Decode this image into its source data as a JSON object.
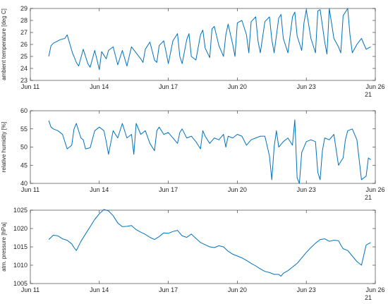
{
  "colors": {
    "series": "#0072BD",
    "axis": "#262626"
  },
  "x_ticks": [
    "Jun 11",
    "Jun 14",
    "Jun 17",
    "Jun 20",
    "Jun 23",
    "Jun 26"
  ],
  "x_ticks_num": [
    11,
    14,
    17,
    20,
    23,
    26
  ],
  "year_label": "21",
  "chart_data": [
    {
      "type": "line",
      "ylabel": "ambient temperature [deg C]",
      "xlim": [
        11,
        26
      ],
      "ylim": [
        23,
        29
      ],
      "y_ticks": [
        "23",
        "24",
        "25",
        "26",
        "27",
        "28",
        "29"
      ],
      "y_ticks_num": [
        23,
        24,
        25,
        26,
        27,
        28,
        29
      ],
      "grid": false,
      "series": [
        {
          "x": [
            11.8,
            11.9,
            12.0,
            12.2,
            12.3,
            12.5,
            12.6,
            12.8,
            12.85,
            12.9,
            13.0,
            13.1,
            13.3,
            13.5,
            13.6,
            13.8,
            14.0,
            14.1,
            14.2,
            14.3,
            14.4,
            14.6,
            14.8,
            15.0,
            15.2,
            15.4,
            15.6,
            15.8,
            15.9,
            16.0,
            16.2,
            16.4,
            16.5,
            16.6,
            16.8,
            16.9,
            17.0,
            17.2,
            17.4,
            17.5,
            17.6,
            17.8,
            17.9,
            18.0,
            18.2,
            18.4,
            18.5,
            18.6,
            18.8,
            18.9,
            19.0,
            19.2,
            19.4,
            19.5,
            19.6,
            19.8,
            19.9,
            20.0,
            20.2,
            20.4,
            20.5,
            20.6,
            20.8,
            20.9,
            21.0,
            21.2,
            21.4,
            21.5,
            21.6,
            21.8,
            21.9,
            22.0,
            22.2,
            22.4,
            22.5,
            22.6,
            22.8,
            22.9,
            23.0,
            23.2,
            23.4,
            23.5,
            23.6,
            23.8,
            23.9,
            24.0,
            24.2,
            24.4,
            24.5,
            24.6,
            24.8,
            24.9,
            25.0,
            25.2,
            25.4,
            25.6,
            25.8
          ],
          "y": [
            25.0,
            25.9,
            26.1,
            26.3,
            26.4,
            26.5,
            26.8,
            25.5,
            25.2,
            25.0,
            24.5,
            24.2,
            25.6,
            24.4,
            24.1,
            25.5,
            23.9,
            25.4,
            25.1,
            24.8,
            25.5,
            25.8,
            24.3,
            25.5,
            24.2,
            25.8,
            25.3,
            24.8,
            24.5,
            25.6,
            26.2,
            24.7,
            24.5,
            25.9,
            26.3,
            25.4,
            24.4,
            26.3,
            26.9,
            25.0,
            24.4,
            26.4,
            26.9,
            25.0,
            24.7,
            26.8,
            27.2,
            25.7,
            24.9,
            27.3,
            27.5,
            25.9,
            25.0,
            26.8,
            27.7,
            26.0,
            25.0,
            27.8,
            28.0,
            26.8,
            25.3,
            27.9,
            28.3,
            26.3,
            25.3,
            27.9,
            28.3,
            26.4,
            25.3,
            28.2,
            28.5,
            26.5,
            25.3,
            28.3,
            28.7,
            26.7,
            25.5,
            27.8,
            28.9,
            26.5,
            25.3,
            28.8,
            28.9,
            26.2,
            25.2,
            29.0,
            26.5,
            25.8,
            25.3,
            28.4,
            29.0,
            26.8,
            25.3,
            26.0,
            26.5,
            25.6,
            25.8
          ]
        }
      ]
    },
    {
      "type": "line",
      "ylabel": "relative humidity [%]",
      "xlim": [
        11,
        26
      ],
      "ylim": [
        40,
        60
      ],
      "y_ticks": [
        "40",
        "45",
        "50",
        "55",
        "60"
      ],
      "y_ticks_num": [
        40,
        45,
        50,
        55,
        60
      ],
      "grid": false,
      "series": [
        {
          "x": [
            11.8,
            11.9,
            12.0,
            12.2,
            12.4,
            12.6,
            12.8,
            12.9,
            13.0,
            13.2,
            13.3,
            13.4,
            13.6,
            13.8,
            14.0,
            14.2,
            14.3,
            14.4,
            14.6,
            14.8,
            15.0,
            15.2,
            15.4,
            15.5,
            15.6,
            15.8,
            16.0,
            16.2,
            16.4,
            16.5,
            16.6,
            16.8,
            17.0,
            17.2,
            17.4,
            17.5,
            17.6,
            17.8,
            18.0,
            18.2,
            18.4,
            18.5,
            18.6,
            18.8,
            19.0,
            19.2,
            19.4,
            19.5,
            19.6,
            19.8,
            20.0,
            20.2,
            20.4,
            20.6,
            20.8,
            21.0,
            21.2,
            21.4,
            21.5,
            21.6,
            21.7,
            21.8,
            22.0,
            22.2,
            22.4,
            22.5,
            22.6,
            22.7,
            22.8,
            23.0,
            23.2,
            23.4,
            23.5,
            23.6,
            23.7,
            23.8,
            24.0,
            24.2,
            24.4,
            24.6,
            24.7,
            24.8,
            25.0,
            25.2,
            25.4,
            25.6,
            25.7,
            25.8
          ],
          "y": [
            57.3,
            55.5,
            55.0,
            54.5,
            53.5,
            49.5,
            50.5,
            55.0,
            56.5,
            52.5,
            52.0,
            49.5,
            49.8,
            54.5,
            55.5,
            54.5,
            51.5,
            48.0,
            54.5,
            52.5,
            56.5,
            52.5,
            53.5,
            48.0,
            56.5,
            53.5,
            54.5,
            51.0,
            49.0,
            54.5,
            55.5,
            53.5,
            54.0,
            52.5,
            51.0,
            54.0,
            55.0,
            52.5,
            53.0,
            51.5,
            49.5,
            54.5,
            53.0,
            51.0,
            52.5,
            52.0,
            53.5,
            50.0,
            53.0,
            52.5,
            53.5,
            53.0,
            50.5,
            52.0,
            52.5,
            53.0,
            53.0,
            47.5,
            41.0,
            50.0,
            54.5,
            50.0,
            51.5,
            52.5,
            50.5,
            57.5,
            41.5,
            40.0,
            48.5,
            51.5,
            52.0,
            51.5,
            43.0,
            41.0,
            49.0,
            52.5,
            52.0,
            53.5,
            45.0,
            47.0,
            52.0,
            54.5,
            55.0,
            52.0,
            41.0,
            42.0,
            47.0,
            46.5
          ]
        }
      ]
    },
    {
      "type": "line",
      "ylabel": "atm. pressure [hPa]",
      "xlim": [
        11,
        26
      ],
      "ylim": [
        1005,
        1025
      ],
      "y_ticks": [
        "1005",
        "1010",
        "1015",
        "1020",
        "1025"
      ],
      "y_ticks_num": [
        1005,
        1010,
        1015,
        1020,
        1025
      ],
      "grid": false,
      "series": [
        {
          "x": [
            11.8,
            12.0,
            12.2,
            12.4,
            12.6,
            12.8,
            12.9,
            13.0,
            13.2,
            13.4,
            13.6,
            13.8,
            14.0,
            14.2,
            14.4,
            14.6,
            14.8,
            15.0,
            15.2,
            15.4,
            15.6,
            15.8,
            16.0,
            16.2,
            16.4,
            16.6,
            16.8,
            17.0,
            17.2,
            17.4,
            17.6,
            17.8,
            18.0,
            18.2,
            18.4,
            18.6,
            18.8,
            19.0,
            19.2,
            19.4,
            19.6,
            19.8,
            20.0,
            20.2,
            20.4,
            20.6,
            20.8,
            21.0,
            21.2,
            21.4,
            21.6,
            21.8,
            21.9,
            22.0,
            22.2,
            22.4,
            22.6,
            22.8,
            23.0,
            23.2,
            23.4,
            23.6,
            23.8,
            24.0,
            24.2,
            24.4,
            24.5,
            24.6,
            24.8,
            25.0,
            25.2,
            25.4,
            25.6,
            25.8
          ],
          "y": [
            1017.0,
            1018.2,
            1018.0,
            1017.2,
            1016.8,
            1015.8,
            1014.8,
            1014.0,
            1016.5,
            1018.5,
            1020.5,
            1022.5,
            1024.0,
            1025.2,
            1024.8,
            1023.5,
            1021.5,
            1020.5,
            1020.6,
            1020.8,
            1019.7,
            1019.0,
            1018.4,
            1017.6,
            1017.0,
            1017.8,
            1018.8,
            1018.7,
            1019.2,
            1019.5,
            1018.0,
            1017.6,
            1018.5,
            1017.3,
            1016.2,
            1015.6,
            1015.0,
            1014.8,
            1015.3,
            1015.0,
            1013.8,
            1013.0,
            1012.5,
            1012.0,
            1011.3,
            1010.5,
            1009.8,
            1009.0,
            1008.3,
            1008.0,
            1007.5,
            1007.5,
            1007.0,
            1007.8,
            1008.5,
            1009.5,
            1010.5,
            1012.0,
            1013.5,
            1014.8,
            1016.0,
            1017.0,
            1017.2,
            1016.5,
            1016.8,
            1016.7,
            1015.5,
            1014.5,
            1014.0,
            1012.5,
            1011.0,
            1010.0,
            1015.5,
            1016.2
          ]
        }
      ]
    }
  ]
}
